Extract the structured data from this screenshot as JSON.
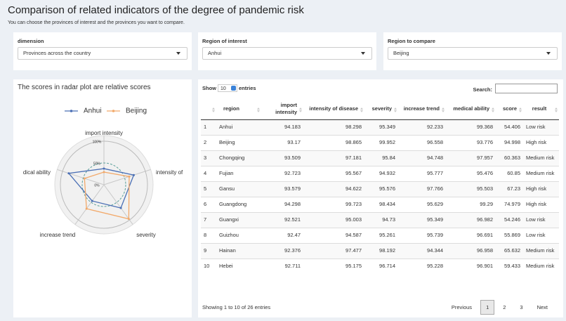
{
  "header": {
    "title": "Comparison of related indicators of the degree of pandemic risk",
    "subtitle": "You can choose the provinces of interest and the provinces you want to compare."
  },
  "filters": [
    {
      "label": "dimension",
      "value": "Provinces across the country"
    },
    {
      "label": "Region of interest",
      "value": "Anhui"
    },
    {
      "label": "Region to compare",
      "value": "Beijing"
    }
  ],
  "chart_data": {
    "type": "radar",
    "title": "The scores in radar plot are relative scores",
    "axes": [
      "import intensity",
      "intensity of",
      "severity",
      "increase trend",
      "dical ability"
    ],
    "series": [
      {
        "name": "Anhui",
        "color": "#4a6fb5",
        "values": [
          37,
          72,
          66,
          46,
          85
        ]
      },
      {
        "name": "Beijing",
        "color": "#f2a96a",
        "values": [
          29,
          61,
          97,
          68,
          47
        ]
      }
    ],
    "rlim": [
      0,
      100
    ],
    "rticks": [
      {
        "value": 0,
        "label": "0%"
      },
      {
        "value": 50,
        "label": "50%"
      },
      {
        "value": 100,
        "label": "100%"
      }
    ]
  },
  "table": {
    "show_label": "Show",
    "page_length": 10,
    "entries_label": "entries",
    "search_label": "Search:",
    "columns": [
      "region",
      "import intensity",
      "intensity of disease",
      "severity",
      "increase trend",
      "medical ability",
      "score",
      "result"
    ],
    "rows": [
      [
        1,
        "Anhui",
        94.183,
        98.298,
        95.349,
        92.233,
        99.368,
        54.406,
        "Low risk"
      ],
      [
        2,
        "Beijing",
        93.17,
        98.865,
        99.952,
        96.558,
        93.776,
        94.998,
        "High risk"
      ],
      [
        3,
        "Chongqing",
        93.509,
        97.181,
        95.84,
        94.748,
        97.957,
        60.363,
        "Medium risk"
      ],
      [
        4,
        "Fujian",
        92.723,
        95.567,
        94.932,
        95.777,
        95.476,
        60.85,
        "Medium risk"
      ],
      [
        5,
        "Gansu",
        93.579,
        94.622,
        95.576,
        97.766,
        95.503,
        67.23,
        "High risk"
      ],
      [
        6,
        "Guangdong",
        94.298,
        99.723,
        98.434,
        95.629,
        99.29,
        74.979,
        "High risk"
      ],
      [
        7,
        "Guangxi",
        92.521,
        95.003,
        94.73,
        95.349,
        96.982,
        54.246,
        "Low risk"
      ],
      [
        8,
        "Guizhou",
        92.47,
        94.587,
        95.261,
        95.739,
        96.691,
        55.869,
        "Low risk"
      ],
      [
        9,
        "Hainan",
        92.376,
        97.477,
        98.192,
        94.344,
        96.958,
        65.632,
        "Medium risk"
      ],
      [
        10,
        "Hebei",
        92.711,
        95.175,
        96.714,
        95.228,
        96.901,
        59.433,
        "Medium risk"
      ]
    ],
    "info": "Showing 1 to 10 of 26 entries",
    "pagination": [
      "Previous",
      "1",
      "2",
      "3",
      "Next"
    ]
  }
}
